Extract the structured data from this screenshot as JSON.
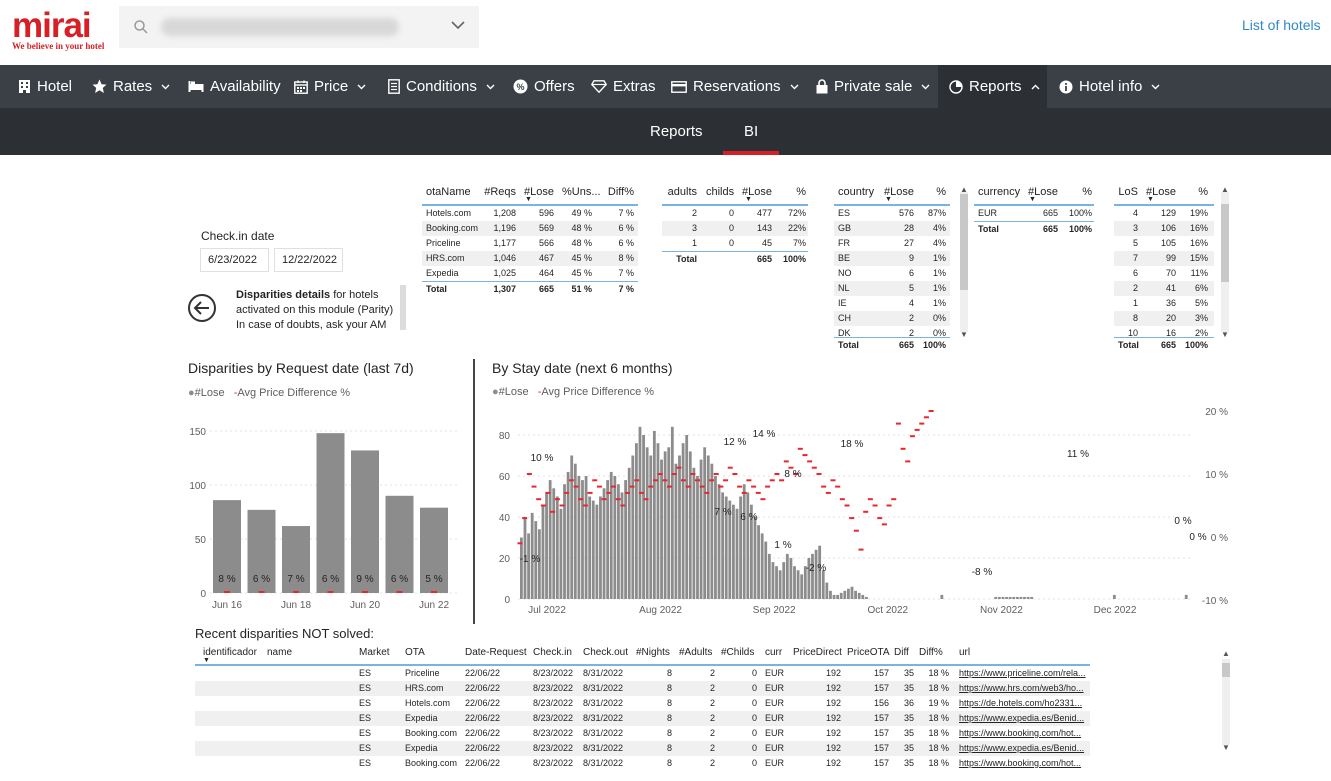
{
  "header": {
    "logo_text": "mirai",
    "logo_tagline": "We believe in your hotel",
    "list_hotels": "List of hotels"
  },
  "nav": [
    {
      "label": "Hotel",
      "icon": "building-icon",
      "dropdown": false
    },
    {
      "label": "Rates",
      "icon": "star-icon",
      "dropdown": true
    },
    {
      "label": "Availability",
      "icon": "bed-icon",
      "dropdown": false
    },
    {
      "label": "Price",
      "icon": "calendar-icon",
      "dropdown": true
    },
    {
      "label": "Conditions",
      "icon": "document-icon",
      "dropdown": true
    },
    {
      "label": "Offers",
      "icon": "badge-icon",
      "dropdown": false
    },
    {
      "label": "Extras",
      "icon": "diamond-icon",
      "dropdown": false
    },
    {
      "label": "Reservations",
      "icon": "card-icon",
      "dropdown": true
    },
    {
      "label": "Private sale",
      "icon": "lock-icon",
      "dropdown": true
    },
    {
      "label": "Reports",
      "icon": "piechart-icon",
      "dropdown": true,
      "active": true
    },
    {
      "label": "Hotel info",
      "icon": "info-icon",
      "dropdown": true
    }
  ],
  "subnav": {
    "reports": "Reports",
    "bi": "BI"
  },
  "checkin": {
    "label": "Check.in date",
    "from": "6/23/2022",
    "to": "12/22/2022"
  },
  "disparities_note": {
    "bold": "Disparities details",
    "text1": " for hotels activated on this module (Parity)",
    "text2": "In case of doubts, ask your AM"
  },
  "ota_table": {
    "headers": [
      "otaName",
      "#Reqs",
      "#Lose",
      "%Uns...",
      "Diff%"
    ],
    "rows": [
      [
        "Hotels.com",
        "1,208",
        "596",
        "49 %",
        "7 %"
      ],
      [
        "Booking.com",
        "1,196",
        "569",
        "48 %",
        "6 %"
      ],
      [
        "Priceline",
        "1,177",
        "566",
        "48 %",
        "6 %"
      ],
      [
        "HRS.com",
        "1,046",
        "467",
        "45 %",
        "8 %"
      ],
      [
        "Expedia",
        "1,025",
        "464",
        "45 %",
        "7 %"
      ]
    ],
    "total": [
      "Total",
      "1,307",
      "665",
      "51 %",
      "7 %"
    ]
  },
  "adults_table": {
    "headers": [
      "adults",
      "childs",
      "#Lose",
      "%"
    ],
    "rows": [
      [
        "2",
        "0",
        "477",
        "72%"
      ],
      [
        "3",
        "0",
        "143",
        "22%"
      ],
      [
        "1",
        "0",
        "45",
        "7%"
      ]
    ],
    "total": [
      "Total",
      "",
      "665",
      "100%"
    ]
  },
  "country_table": {
    "headers": [
      "country",
      "#Lose",
      "%"
    ],
    "rows": [
      [
        "ES",
        "576",
        "87%"
      ],
      [
        "GB",
        "28",
        "4%"
      ],
      [
        "FR",
        "27",
        "4%"
      ],
      [
        "BE",
        "9",
        "1%"
      ],
      [
        "NO",
        "6",
        "1%"
      ],
      [
        "NL",
        "5",
        "1%"
      ],
      [
        "IE",
        "4",
        "1%"
      ],
      [
        "CH",
        "2",
        "0%"
      ],
      [
        "DK",
        "2",
        "0%"
      ]
    ],
    "total": [
      "Total",
      "665",
      "100%"
    ]
  },
  "currency_table": {
    "headers": [
      "currency",
      "#Lose",
      "%"
    ],
    "rows": [
      [
        "EUR",
        "665",
        "100%"
      ]
    ],
    "total": [
      "Total",
      "665",
      "100%"
    ]
  },
  "los_table": {
    "headers": [
      "LoS",
      "#Lose",
      "%"
    ],
    "rows": [
      [
        "4",
        "129",
        "19%"
      ],
      [
        "3",
        "106",
        "16%"
      ],
      [
        "5",
        "105",
        "16%"
      ],
      [
        "7",
        "99",
        "15%"
      ],
      [
        "6",
        "70",
        "11%"
      ],
      [
        "2",
        "41",
        "6%"
      ],
      [
        "1",
        "36",
        "5%"
      ],
      [
        "8",
        "20",
        "3%"
      ],
      [
        "10",
        "16",
        "2%"
      ]
    ],
    "total": [
      "Total",
      "665",
      "100%"
    ]
  },
  "legend": {
    "lose": "#Lose",
    "diff": "Avg Price Difference %"
  },
  "chart_data": [
    {
      "type": "bar",
      "title": "Disparities by Request date (last 7d)",
      "categories": [
        "Jun 16",
        "Jun 17",
        "Jun 18",
        "Jun 19",
        "Jun 20",
        "Jun 21",
        "Jun 22"
      ],
      "x_tick_labels": [
        "Jun 16",
        "Jun 18",
        "Jun 20",
        "Jun 22"
      ],
      "series": [
        {
          "name": "#Lose",
          "values": [
            86,
            77,
            62,
            148,
            132,
            90,
            79
          ]
        },
        {
          "name": "Avg Price Difference %",
          "values": [
            8,
            6,
            7,
            6,
            9,
            6,
            5
          ]
        }
      ],
      "data_labels": [
        "8 %",
        "6 %",
        "7 %",
        "6 %",
        "9 %",
        "6 %",
        "5 %"
      ],
      "y_ticks": [
        0,
        50,
        100,
        150
      ],
      "ylim": [
        0,
        160
      ]
    },
    {
      "type": "bar",
      "title": "By Stay date (next 6 months)",
      "x_range": [
        "2022-06-23",
        "2022-12-22"
      ],
      "x_tick_labels": [
        "Jul 2022",
        "Aug 2022",
        "Sep 2022",
        "Oct 2022",
        "Nov 2022",
        "Dec 2022"
      ],
      "y_ticks": [
        0,
        20,
        40,
        60,
        80
      ],
      "ylim": [
        0,
        88
      ],
      "y2_ticks": [
        "-10 %",
        "0 %",
        "10 %",
        "20 %"
      ],
      "y2lim": [
        -10,
        20
      ],
      "series": [
        {
          "name": "#Lose",
          "values": [
            30,
            40,
            32,
            42,
            38,
            34,
            46,
            52,
            58,
            54,
            50,
            44,
            56,
            62,
            70,
            66,
            60,
            58,
            60,
            50,
            48,
            46,
            50,
            54,
            58,
            62,
            60,
            56,
            52,
            58,
            64,
            70,
            76,
            84,
            80,
            74,
            70,
            82,
            76,
            68,
            72,
            74,
            84,
            66,
            70,
            76,
            80,
            72,
            64,
            60,
            68,
            74,
            70,
            66,
            60,
            56,
            52,
            50,
            48,
            46,
            44,
            50,
            56,
            52,
            46,
            40,
            36,
            32,
            28,
            22,
            18,
            16,
            14,
            18,
            22,
            20,
            16,
            14,
            12,
            16,
            20,
            22,
            24,
            26,
            14,
            8,
            4,
            2,
            2,
            3,
            4,
            5,
            6,
            4,
            3,
            2,
            1,
            0,
            0,
            0,
            0,
            0,
            0,
            0,
            0,
            0,
            0,
            0,
            0,
            0,
            0,
            0,
            0,
            0,
            0,
            0,
            0,
            2,
            0,
            0,
            0,
            0,
            0,
            0,
            0,
            0,
            0,
            0,
            0,
            0,
            0,
            0,
            1,
            1,
            1,
            1,
            1,
            1,
            1,
            1,
            1,
            1,
            1,
            0,
            0,
            0,
            0,
            0,
            0,
            0,
            0,
            0,
            0,
            0,
            0,
            0,
            0,
            0,
            0,
            0,
            0,
            0,
            0,
            0,
            0,
            2,
            0,
            0,
            0,
            0,
            0,
            0,
            0,
            0,
            0,
            0,
            0,
            0,
            0,
            0,
            0,
            0,
            0,
            0,
            0,
            2,
            0
          ]
        },
        {
          "name": "Avg Price Difference %",
          "values": [
            -1,
            3,
            10,
            8,
            6,
            5,
            7,
            4,
            6,
            5,
            7,
            9,
            8,
            6,
            5,
            7,
            9,
            8,
            6,
            7,
            8,
            6,
            5,
            7,
            8,
            9,
            7,
            6,
            8,
            9,
            10,
            9,
            8,
            10,
            11,
            9,
            8,
            10,
            9,
            8,
            7,
            9,
            10,
            8,
            9,
            11,
            10,
            8,
            7,
            9,
            8,
            7,
            6,
            8,
            9,
            10,
            9,
            12,
            11,
            10,
            14,
            13,
            12,
            11,
            10,
            8,
            7,
            9,
            8,
            6,
            5,
            3,
            1,
            -2,
            4,
            6,
            5,
            3,
            2,
            5,
            6,
            18,
            14,
            12,
            16,
            17,
            18,
            19,
            20
          ]
        }
      ],
      "data_labels": [
        "-1 %",
        "10 %",
        "12 %",
        "14 %",
        "18 %",
        "8 %",
        "7 %",
        "6 %",
        "1 %",
        "-2 %",
        "-8 %",
        "11 %",
        "0 %",
        "0 %"
      ]
    }
  ],
  "recent": {
    "title": "Recent disparities NOT solved:",
    "headers": [
      "identificador",
      "name",
      "Market",
      "OTA",
      "Date-Request",
      "Check.in",
      "Check.out",
      "#Nights",
      "#Adults",
      "#Childs",
      "curr",
      "PriceDirect",
      "PriceOTA",
      "Diff",
      "Diff%",
      "url"
    ],
    "rows": [
      [
        "",
        "",
        "ES",
        "Priceline",
        "22/06/22",
        "8/23/2022",
        "8/31/2022",
        "8",
        "2",
        "0",
        "EUR",
        "192",
        "157",
        "35",
        "18 %",
        "https://www.priceline.com/rela..."
      ],
      [
        "",
        "",
        "ES",
        "HRS.com",
        "22/06/22",
        "8/23/2022",
        "8/31/2022",
        "8",
        "2",
        "0",
        "EUR",
        "192",
        "157",
        "35",
        "18 %",
        "https://www.hrs.com/web3/ho..."
      ],
      [
        "",
        "",
        "ES",
        "Hotels.com",
        "22/06/22",
        "8/23/2022",
        "8/31/2022",
        "8",
        "2",
        "0",
        "EUR",
        "192",
        "156",
        "36",
        "19 %",
        "https://de.hotels.com/ho2331..."
      ],
      [
        "",
        "",
        "ES",
        "Expedia",
        "22/06/22",
        "8/23/2022",
        "8/31/2022",
        "8",
        "2",
        "0",
        "EUR",
        "192",
        "157",
        "35",
        "18 %",
        "https://www.expedia.es/Benid..."
      ],
      [
        "",
        "",
        "ES",
        "Booking.com",
        "22/06/22",
        "8/23/2022",
        "8/31/2022",
        "8",
        "2",
        "0",
        "EUR",
        "192",
        "157",
        "35",
        "18 %",
        "https://www.booking.com/hot..."
      ],
      [
        "",
        "",
        "ES",
        "Expedia",
        "22/06/22",
        "8/23/2022",
        "8/31/2022",
        "8",
        "2",
        "0",
        "EUR",
        "192",
        "157",
        "35",
        "18 %",
        "https://www.expedia.es/Benid..."
      ],
      [
        "",
        "",
        "ES",
        "Booking.com",
        "22/06/22",
        "8/23/2022",
        "8/31/2022",
        "8",
        "2",
        "0",
        "EUR",
        "192",
        "157",
        "35",
        "18 %",
        "https://www.booking.com/hot..."
      ]
    ]
  },
  "colors": {
    "brand": "#d71f26",
    "nav": "#3b4046",
    "subnav": "#2c3035",
    "bar": "#8c8c8c",
    "diff": "#e8262d",
    "link": "#2f89c7"
  }
}
